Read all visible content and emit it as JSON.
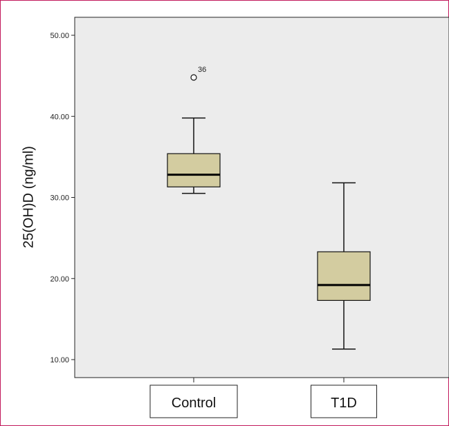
{
  "chart_data": {
    "type": "box",
    "ylabel": "25(OH)D (ng/ml)",
    "ylim": [
      8.0,
      52.0
    ],
    "yticks": [
      10.0,
      20.0,
      30.0,
      40.0,
      50.0
    ],
    "ytick_labels": [
      "10.00",
      "20.00",
      "30.00",
      "40.00",
      "50.00"
    ],
    "categories": [
      "Control",
      "T1D"
    ],
    "boxes": [
      {
        "category": "Control",
        "min": 30.5,
        "q1": 31.3,
        "median": 32.8,
        "q3": 35.4,
        "max": 39.8,
        "outliers": [
          {
            "value": 44.8,
            "label": "36"
          }
        ]
      },
      {
        "category": "T1D",
        "min": 11.3,
        "q1": 17.3,
        "median": 19.2,
        "q3": 23.3,
        "max": 31.8,
        "outliers": []
      }
    ],
    "grid": false,
    "colors": {
      "box_fill": "#d3cca0",
      "plot_bg": "#ececec",
      "frame": "#c2185b"
    }
  }
}
